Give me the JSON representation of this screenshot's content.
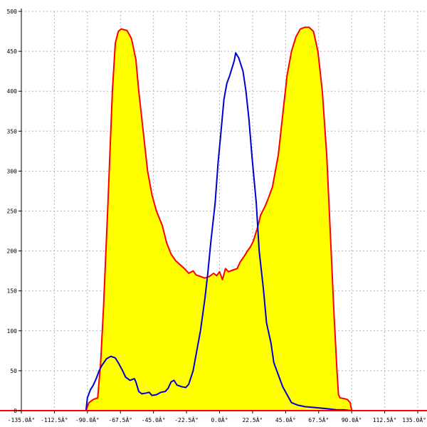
{
  "chart_data": {
    "type": "area",
    "title": "",
    "xlabel": "",
    "ylabel": "",
    "xlim": [
      -135,
      135
    ],
    "ylim": [
      0,
      500
    ],
    "grid": true,
    "x_ticks": [
      -135,
      -112.5,
      -90,
      -67.5,
      -45,
      -22.5,
      0,
      22.5,
      45,
      67.5,
      90,
      112.5,
      135
    ],
    "x_tick_labels": [
      "-135.0Â°",
      "-112.5Â°",
      "-90.0Â°",
      "-67.5Â°",
      "-45.0Â°",
      "-22.5Â°",
      "0.0Â°",
      "22.5Â°",
      "45.0Â°",
      "67.5Â°",
      "90.0Â°",
      "112.5Â°",
      "135.0Â°"
    ],
    "y_ticks": [
      0,
      50,
      100,
      150,
      200,
      250,
      300,
      350,
      400,
      450,
      500
    ],
    "y_tick_labels": [
      "0",
      "50",
      "100",
      "150",
      "200",
      "250",
      "300",
      "350",
      "400",
      "450",
      "500"
    ],
    "colors": {
      "fill": "#ffff00",
      "red_series": "#ff0000",
      "blue_series": "#0000cc",
      "grid": "#b4b4b4",
      "axis": "#ff0000"
    },
    "series": [
      {
        "color": "red",
        "fill": true,
        "points": [
          [
            -91,
            0
          ],
          [
            -89,
            10
          ],
          [
            -86,
            14
          ],
          [
            -83,
            16
          ],
          [
            -81,
            60
          ],
          [
            -79,
            130
          ],
          [
            -76,
            260
          ],
          [
            -73,
            400
          ],
          [
            -71,
            460
          ],
          [
            -69,
            475
          ],
          [
            -67,
            478
          ],
          [
            -63,
            476
          ],
          [
            -60,
            466
          ],
          [
            -57,
            440
          ],
          [
            -55,
            400
          ],
          [
            -52,
            350
          ],
          [
            -49,
            300
          ],
          [
            -46,
            270
          ],
          [
            -43,
            250
          ],
          [
            -39,
            232
          ],
          [
            -36,
            210
          ],
          [
            -33,
            196
          ],
          [
            -30,
            188
          ],
          [
            -27,
            183
          ],
          [
            -24,
            178
          ],
          [
            -21,
            172
          ],
          [
            -18,
            175
          ],
          [
            -16,
            170
          ],
          [
            -13,
            168
          ],
          [
            -10,
            166
          ],
          [
            -7,
            168
          ],
          [
            -4,
            172
          ],
          [
            -2,
            169
          ],
          [
            0,
            174
          ],
          [
            2,
            164
          ],
          [
            4,
            178
          ],
          [
            6,
            174
          ],
          [
            9,
            176
          ],
          [
            12,
            178
          ],
          [
            14,
            186
          ],
          [
            17,
            194
          ],
          [
            19,
            200
          ],
          [
            21,
            205
          ],
          [
            23,
            212
          ],
          [
            26,
            230
          ],
          [
            28,
            245
          ],
          [
            31,
            256
          ],
          [
            33,
            265
          ],
          [
            36,
            280
          ],
          [
            40,
            320
          ],
          [
            43,
            370
          ],
          [
            46,
            420
          ],
          [
            49,
            450
          ],
          [
            52,
            468
          ],
          [
            55,
            478
          ],
          [
            58,
            480
          ],
          [
            61,
            480
          ],
          [
            64,
            475
          ],
          [
            67,
            450
          ],
          [
            70,
            400
          ],
          [
            73,
            320
          ],
          [
            76,
            200
          ],
          [
            78,
            120
          ],
          [
            80,
            50
          ],
          [
            81,
            20
          ],
          [
            82,
            16
          ],
          [
            85,
            15
          ],
          [
            87,
            14
          ],
          [
            89,
            10
          ],
          [
            90,
            0
          ]
        ]
      },
      {
        "color": "blue",
        "fill": false,
        "points": [
          [
            -91,
            0
          ],
          [
            -90,
            16
          ],
          [
            -88,
            26
          ],
          [
            -86,
            32
          ],
          [
            -84,
            40
          ],
          [
            -82,
            50
          ],
          [
            -80,
            57
          ],
          [
            -77,
            65
          ],
          [
            -74,
            68
          ],
          [
            -71,
            66
          ],
          [
            -69,
            60
          ],
          [
            -66,
            50
          ],
          [
            -64,
            42
          ],
          [
            -61,
            38
          ],
          [
            -58,
            40
          ],
          [
            -57,
            36
          ],
          [
            -55,
            24
          ],
          [
            -53,
            21
          ],
          [
            -50,
            22
          ],
          [
            -48,
            23
          ],
          [
            -46,
            19
          ],
          [
            -43,
            20
          ],
          [
            -40,
            23
          ],
          [
            -37,
            24
          ],
          [
            -35,
            28
          ],
          [
            -33,
            36
          ],
          [
            -31,
            38
          ],
          [
            -29,
            32
          ],
          [
            -26,
            30
          ],
          [
            -23,
            29
          ],
          [
            -21,
            33
          ],
          [
            -18,
            50
          ],
          [
            -16,
            70
          ],
          [
            -13,
            100
          ],
          [
            -10,
            140
          ],
          [
            -8,
            172
          ],
          [
            -6,
            210
          ],
          [
            -3,
            260
          ],
          [
            -1,
            310
          ],
          [
            1,
            350
          ],
          [
            3,
            390
          ],
          [
            5,
            410
          ],
          [
            7,
            420
          ],
          [
            10,
            438
          ],
          [
            11,
            448
          ],
          [
            13,
            442
          ],
          [
            16,
            425
          ],
          [
            18,
            400
          ],
          [
            20,
            365
          ],
          [
            22,
            320
          ],
          [
            25,
            260
          ],
          [
            27,
            200
          ],
          [
            30,
            150
          ],
          [
            32,
            110
          ],
          [
            35,
            85
          ],
          [
            37,
            60
          ],
          [
            40,
            45
          ],
          [
            43,
            30
          ],
          [
            46,
            20
          ],
          [
            49,
            10
          ],
          [
            53,
            7
          ],
          [
            58,
            5
          ],
          [
            64,
            4
          ],
          [
            70,
            3
          ],
          [
            75,
            2
          ],
          [
            80,
            1
          ],
          [
            85,
            1
          ],
          [
            90,
            0
          ]
        ]
      }
    ]
  }
}
